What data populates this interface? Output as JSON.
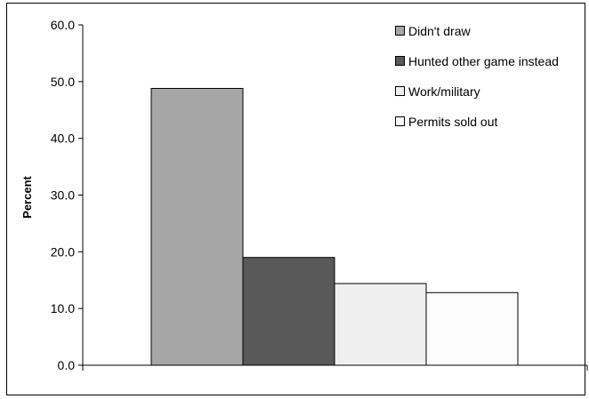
{
  "chart_data": {
    "type": "bar",
    "ylabel": "Percent",
    "ylim": [
      0,
      60
    ],
    "yticks": [
      "0.0",
      "10.0",
      "20.0",
      "30.0",
      "40.0",
      "50.0",
      "60.0"
    ],
    "grid": false,
    "legend_position": "top-right",
    "series": [
      {
        "name": "Didn't draw",
        "value": 48.8,
        "color": "#a6a6a6"
      },
      {
        "name": "Hunted other game instead",
        "value": 19.0,
        "color": "#595959"
      },
      {
        "name": "Work/military",
        "value": 14.4,
        "color": "#efefef"
      },
      {
        "name": "Permits sold out",
        "value": 12.8,
        "color": "#fcfcfc"
      }
    ]
  }
}
